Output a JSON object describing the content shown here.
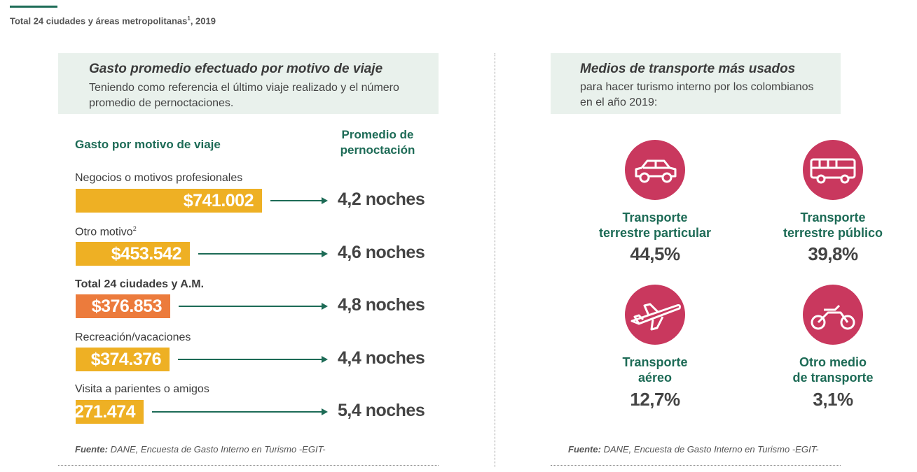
{
  "page": {
    "title": "Total 24 ciudades y áreas metropolitanas",
    "title_sup": "1",
    "title_year": ", 2019"
  },
  "left_panel": {
    "title": "Gasto promedio efectuado por motivo de viaje",
    "subtitle": "Teniendo como referencia el último viaje realizado y el número promedio de pernoctaciones.",
    "col_left": "Gasto por motivo de viaje",
    "col_right_line1": "Promedio de",
    "col_right_line2": "pernoctación",
    "source_label": "Fuente:",
    "source_text": " DANE, Encuesta de Gasto Interno en Turismo -EGIT-"
  },
  "right_panel": {
    "title": "Medios de transporte más usados",
    "subtitle_line1": "para hacer turismo interno por los colombianos",
    "subtitle_line2": "en el año 2019:",
    "source_label": "Fuente:",
    "source_text": " DANE, Encuesta de Gasto Interno en Turismo -EGIT-",
    "modes": [
      {
        "line1": "Transporte",
        "line2": "terrestre particular",
        "pct": "44,5%",
        "icon": "car-icon"
      },
      {
        "line1": "Transporte",
        "line2": "terrestre público",
        "pct": "39,8%",
        "icon": "bus-icon"
      },
      {
        "line1": "Transporte",
        "line2": "aéreo",
        "pct": "12,7%",
        "icon": "airplane-icon"
      },
      {
        "line1": "Otro medio",
        "line2": "de transporte",
        "pct": "3,1%",
        "icon": "motorcycle-icon"
      }
    ]
  },
  "colors": {
    "accent_green": "#1d6b56",
    "bar_yellow": "#eeb024",
    "bar_orange": "#ec7b3c",
    "circle_pink": "#c9385e",
    "header_bg": "#e9f1ec"
  },
  "chart_data": [
    {
      "type": "bar",
      "orientation": "horizontal",
      "title": "Gasto promedio efectuado por motivo de viaje",
      "categories": [
        "Negocios o motivos profesionales",
        "Otro motivo",
        "Total 24 ciudades y A.M.",
        "Recreación/vacaciones",
        "Visita a parientes o amigos"
      ],
      "category_sup": [
        "",
        "2",
        "",
        "",
        ""
      ],
      "values": [
        741002,
        453542,
        376853,
        374376,
        271474
      ],
      "value_labels": [
        "$741.002",
        "$453.542",
        "$376.853",
        "$374.376",
        "$271.474"
      ],
      "highlight": [
        false,
        false,
        true,
        false,
        false
      ],
      "nights": [
        4.2,
        4.6,
        4.8,
        4.4,
        5.4
      ],
      "nights_labels": [
        "4,2 noches",
        "4,6 noches",
        "4,8 noches",
        "4,4 noches",
        "5,4 noches"
      ]
    }
  ]
}
